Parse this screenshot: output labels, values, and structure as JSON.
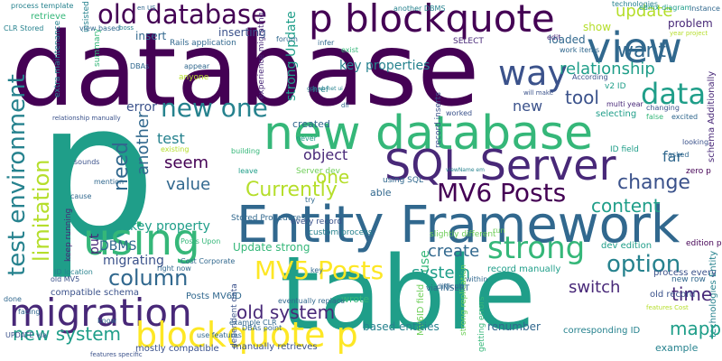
{
  "palette": {
    "c1": "#440154",
    "c2": "#482878",
    "c3": "#3b528b",
    "c4": "#31688e",
    "c5": "#26828e",
    "c6": "#1f9e89",
    "c7": "#35b779",
    "c8": "#6ece58",
    "c9": "#b5de2b",
    "c10": "#fde725"
  },
  "words": {
    "database": "database",
    "p": "p",
    "table": "table",
    "entity_framework": "Entity Framework",
    "new_database": "new database",
    "sql_server": "SQL Server",
    "using": "using",
    "p_blockquote": "p blockquote",
    "old_database": "old database",
    "migration": "migration",
    "blockquote_p": "blockquote p",
    "view": "view",
    "mv6_posts": "MV6 Posts",
    "mv5_posts": "MV5 Posts",
    "strong": "strong",
    "way": "way",
    "data": "data",
    "new_one": "new one",
    "test_environment": "test environment",
    "limitation": "limitation",
    "column": "column",
    "option": "option",
    "currently": "Currently",
    "old_system": "old system",
    "change": "change",
    "want": "want",
    "update": "update",
    "relationship": "relationship",
    "tool": "tool",
    "one": "one",
    "content": "content",
    "new_system": "new system",
    "switch": "switch",
    "time": "time",
    "mapped": "mapped",
    "value": "value",
    "seem": "seem",
    "create": "create",
    "system": "system",
    "test": "test",
    "object": "object",
    "another": "another",
    "need": "need",
    "error": "error",
    "key_properties": "key properties",
    "key_property": "key property",
    "dbms": "DBMS",
    "migrating": "migrating",
    "strong_update": "strong Update",
    "update_strong": "Update strong",
    "new": "new",
    "far": "far",
    "loaded": "loaded",
    "problem": "problem",
    "show": "show",
    "inserting": "inserting",
    "insert": "insert",
    "based_entities": "based entities",
    "renumber": "renumber",
    "corresponding_id": "corresponding ID",
    "example": "example",
    "created": "created",
    "able": "able",
    "put": "put",
    "use": "use",
    "wrote": "wrote",
    "mostly_compatible": "mostly compatible",
    "manually_retrieves": "manually retrieves",
    "compatible_schema": "compatible schema",
    "posts_mv6id": "Posts MV6ID",
    "dev_edition": "dev edition",
    "process_every": "process every",
    "old_record": "old record",
    "record_manually": "record manually",
    "selecting": "selecting",
    "retrieve": "retrieve",
    "process_template": "process template",
    "clr_stored": "CLR Stored",
    "rails_application": "Rails application",
    "stored_procedures": "Stored Procedures",
    "another_dbms": "another DBMS",
    "work_items": "work items",
    "every_record": "every record",
    "custom_process": "custom process",
    "slightly_different": "slightly different",
    "id_location": "ID location",
    "old_mv5": "old MV5",
    "via_insert": "via INSERT",
    "select": "SELECT",
    "edit": "edit",
    "technologies": "technologies",
    "edmx_diagram": "edmx diagram",
    "instance": "instance",
    "server_dev": "Server dev",
    "id_field": "ID field",
    "zero_p": "zero p",
    "edition_p": "edition p",
    "new_row": "new row",
    "using_sql": "using SQL",
    "multi_year": "multi year",
    "v2_id": "v2 ID",
    "according": "According",
    "href": "href",
    "dbas": "DBAs",
    "anyone": "anyone",
    "appear": "appear",
    "forum": "forum",
    "infer": "infer",
    "never": "never",
    "building": "building",
    "existing": "existing",
    "sounds": "sounds",
    "mention": "mention",
    "done": "done",
    "know": "know",
    "right_now": "right now",
    "facing": "facing",
    "update_via": "UPDATE via",
    "relationship_manually": "relationship manually",
    "record_inserts": "record inserts",
    "mv6id_field": "MV6ID field",
    "dependent_data": "dependent data",
    "schema_additionally": "schema Additionally",
    "technologies_entity": "technologies Entity",
    "eventually_replace": "eventually replace",
    "example_clr": "example CLR",
    "dbas_point": "DBAs point",
    "use_features": "use features",
    "features_specific": "features specific",
    "asked": "asked",
    "looking": "looking",
    "excited": "excited",
    "false": "false",
    "changing": "changing",
    "will_make": "will make",
    "worked": "worked",
    "within": "within",
    "difficult": "difficult",
    "posts_upon": "Posts Upon",
    "cost_corporate": "Cost Corporate",
    "leave": "leave",
    "keep_running": "keep running",
    "try": "try",
    "cause": "cause",
    "exist": "exist",
    "view_based": "view based",
    "year_project": "year project",
    "features_cost": "features Cost",
    "run": "run",
    "key": "key",
    "extra_maintenance": "extra maintenance",
    "experience_migrating": "experience migrating",
    "gpp_vb_net_ui": "gpp vb net ui",
    "dll": "dll",
    "insisted": "insisted",
    "summary": "summary",
    "getting_errors": "getting errors",
    "strong_replication": "strong replication",
    "viewname_em": "viewName em",
    "en_us": "en US",
    "boss": "boss"
  }
}
